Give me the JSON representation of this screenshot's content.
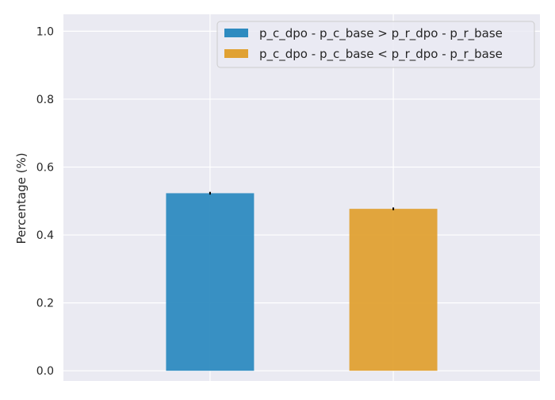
{
  "chart_data": {
    "type": "bar",
    "title": "",
    "xlabel": "",
    "ylabel": "Percentage (%)",
    "ylim": [
      -0.03,
      1.05
    ],
    "yticks": [
      0.0,
      0.2,
      0.4,
      0.6,
      0.8,
      1.0
    ],
    "ytick_labels": [
      "0.0",
      "0.2",
      "0.4",
      "0.6",
      "0.8",
      "1.0"
    ],
    "grid": true,
    "legend_position": "top-right",
    "series": [
      {
        "name": "p_c_dpo - p_c_base > p_r_dpo - p_r_base",
        "value": 0.523,
        "error": 0.004,
        "color": "#2e8bc0"
      },
      {
        "name": "p_c_dpo - p_c_base < p_r_dpo - p_r_base",
        "value": 0.477,
        "error": 0.004,
        "color": "#e0a133"
      }
    ]
  }
}
